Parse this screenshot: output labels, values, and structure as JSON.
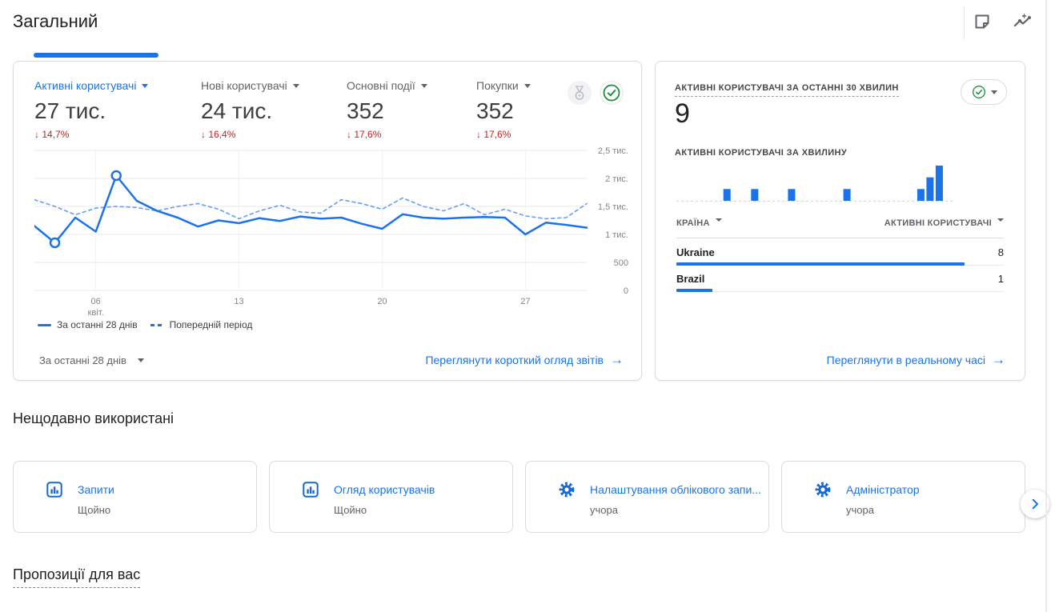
{
  "header": {
    "title": "Загальний",
    "note_icon": "note-icon",
    "insights_icon": "insights-icon"
  },
  "overview_card": {
    "metrics": [
      {
        "label": "Активні користувачі",
        "value": "27 тис.",
        "delta": "14,7%",
        "direction": "down",
        "selected": true
      },
      {
        "label": "Нові користувачі",
        "value": "24 тис.",
        "delta": "16,4%",
        "direction": "down",
        "selected": false
      },
      {
        "label": "Основні події",
        "value": "352",
        "delta": "17,6%",
        "direction": "down",
        "selected": false
      },
      {
        "label": "Покупки",
        "value": "352",
        "delta": "17,6%",
        "direction": "down",
        "selected": false
      }
    ],
    "badges": [
      "medal-icon",
      "check-circle-icon"
    ],
    "legend": [
      {
        "label": "За останні 28 днів",
        "style": "solid"
      },
      {
        "label": "Попередній період",
        "style": "dashed"
      }
    ],
    "date_range_label": "За останні 28 днів",
    "footer_link": "Переглянути короткий огляд звітів"
  },
  "realtime_card": {
    "title": "АКТИВНІ КОРИСТУВАЧІ ЗА ОСТАННІ 30 ХВИЛИН",
    "active_users": "9",
    "per_minute_label": "АКТИВНІ КОРИСТУВАЧІ ЗА ХВИЛИНУ",
    "footer_link": "Переглянути в реальному часі"
  },
  "recent": {
    "title": "Нещодавно використані",
    "cards": [
      {
        "icon": "bar-chart-icon",
        "title": "Запити",
        "time": "Щойно"
      },
      {
        "icon": "bar-chart-icon",
        "title": "Огляд користувачів",
        "time": "Щойно"
      },
      {
        "icon": "gear-icon",
        "title": "Налаштування облікового запи...",
        "time": "учора"
      },
      {
        "icon": "gear-icon",
        "title": "Адміністратор",
        "time": "учора"
      }
    ]
  },
  "suggestions_title": "Пропозиції для вас",
  "colors": {
    "accent": "#1a73e8",
    "negative": "#c5221f",
    "check_green": "#1e8e3e",
    "muted_text": "#5f6368",
    "grid": "#e8eaed"
  },
  "chart_data": [
    {
      "type": "line",
      "title": "Активні користувачі за останні 28 днів порівняно з попереднім періодом",
      "x_days": 28,
      "x_ticks": [
        {
          "day": 4,
          "label": "06",
          "sublabel": "квіт."
        },
        {
          "day": 11,
          "label": "13"
        },
        {
          "day": 18,
          "label": "20"
        },
        {
          "day": 25,
          "label": "27"
        }
      ],
      "ylim": [
        0,
        2500
      ],
      "y_ticks": [
        0,
        500,
        1000,
        1500,
        2000,
        2500
      ],
      "y_tick_labels": [
        "0",
        "500",
        "1 тис.",
        "1,5 тис.",
        "2 тис.",
        "2,5 тис."
      ],
      "grid": true,
      "legend_position": "bottom",
      "series": [
        {
          "name": "За останні 28 днів",
          "style": "solid",
          "color": "#1a73e8",
          "values": [
            1150,
            850,
            1300,
            1050,
            2050,
            1600,
            1420,
            1300,
            1140,
            1250,
            1200,
            1290,
            1240,
            1320,
            1280,
            1300,
            1190,
            1100,
            1360,
            1300,
            1280,
            1300,
            1310,
            1300,
            1000,
            1210,
            1170,
            1120
          ]
        },
        {
          "name": "Попередній період",
          "style": "dashed",
          "color": "#669df6",
          "values": [
            1620,
            1500,
            1350,
            1470,
            1500,
            1480,
            1420,
            1500,
            1550,
            1450,
            1280,
            1420,
            1520,
            1400,
            1380,
            1620,
            1550,
            1450,
            1650,
            1500,
            1420,
            1550,
            1350,
            1450,
            1330,
            1280,
            1300,
            1550
          ]
        }
      ],
      "markers": [
        {
          "series": 0,
          "day": 2
        },
        {
          "series": 0,
          "day": 5
        }
      ]
    },
    {
      "type": "bar",
      "title": "Активні користувачі за хвилину",
      "slots": 30,
      "values": [
        0,
        0,
        0,
        0,
        0,
        1,
        0,
        0,
        1,
        0,
        0,
        0,
        1,
        0,
        0,
        0,
        0,
        0,
        1,
        0,
        0,
        0,
        0,
        0,
        0,
        0,
        1,
        2,
        3,
        0
      ],
      "ymax": 3,
      "color": "#1a73e8"
    },
    {
      "type": "table",
      "title": "Активні користувачі за країною",
      "columns": [
        "КРАЇНА",
        "АКТИВНІ КОРИСТУВАЧІ"
      ],
      "rows": [
        {
          "country": "Ukraine",
          "value": 8
        },
        {
          "country": "Brazil",
          "value": 1
        }
      ],
      "max_value": 8,
      "bar_color": "#1a73e8"
    }
  ]
}
